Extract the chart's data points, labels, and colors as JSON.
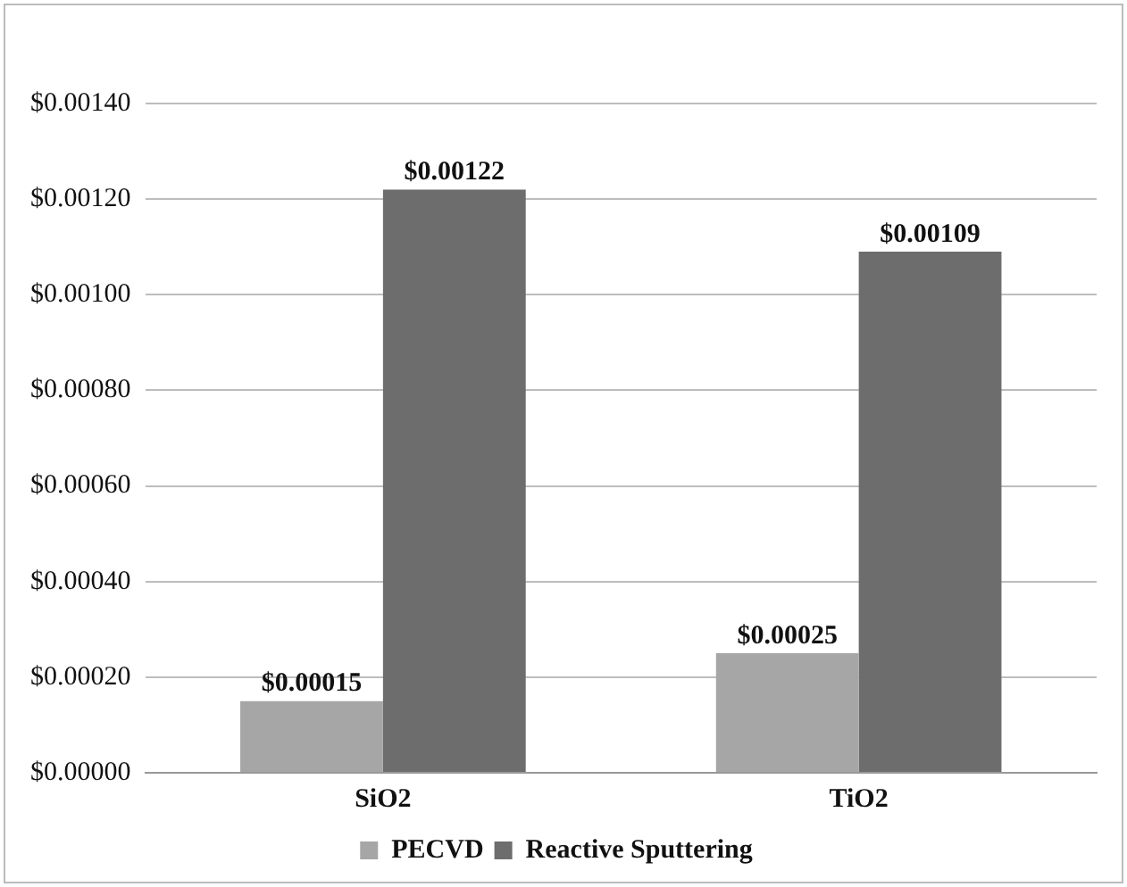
{
  "chart_data": {
    "type": "bar",
    "categories": [
      "SiO2",
      "TiO2"
    ],
    "series": [
      {
        "name": "PECVD",
        "color": "#a6a6a6",
        "values": [
          0.00015,
          0.00025
        ],
        "value_labels": [
          "$0.00015",
          "$0.00025"
        ]
      },
      {
        "name": "Reactive Sputtering",
        "color": "#6d6d6d",
        "values": [
          0.00122,
          0.00109
        ],
        "value_labels": [
          "$0.00122",
          "$0.00109"
        ]
      }
    ],
    "ylim": [
      0,
      0.0014
    ],
    "yticks": [
      {
        "value": 0,
        "label": "$0.00000"
      },
      {
        "value": 0.0002,
        "label": "$0.00020"
      },
      {
        "value": 0.0004,
        "label": "$0.00040"
      },
      {
        "value": 0.0006,
        "label": "$0.00060"
      },
      {
        "value": 0.0008,
        "label": "$0.00080"
      },
      {
        "value": 0.001,
        "label": "$0.00100"
      },
      {
        "value": 0.0012,
        "label": "$0.00120"
      },
      {
        "value": 0.0014,
        "label": "$0.00140"
      }
    ],
    "grid": "y",
    "legend": "bottom"
  }
}
